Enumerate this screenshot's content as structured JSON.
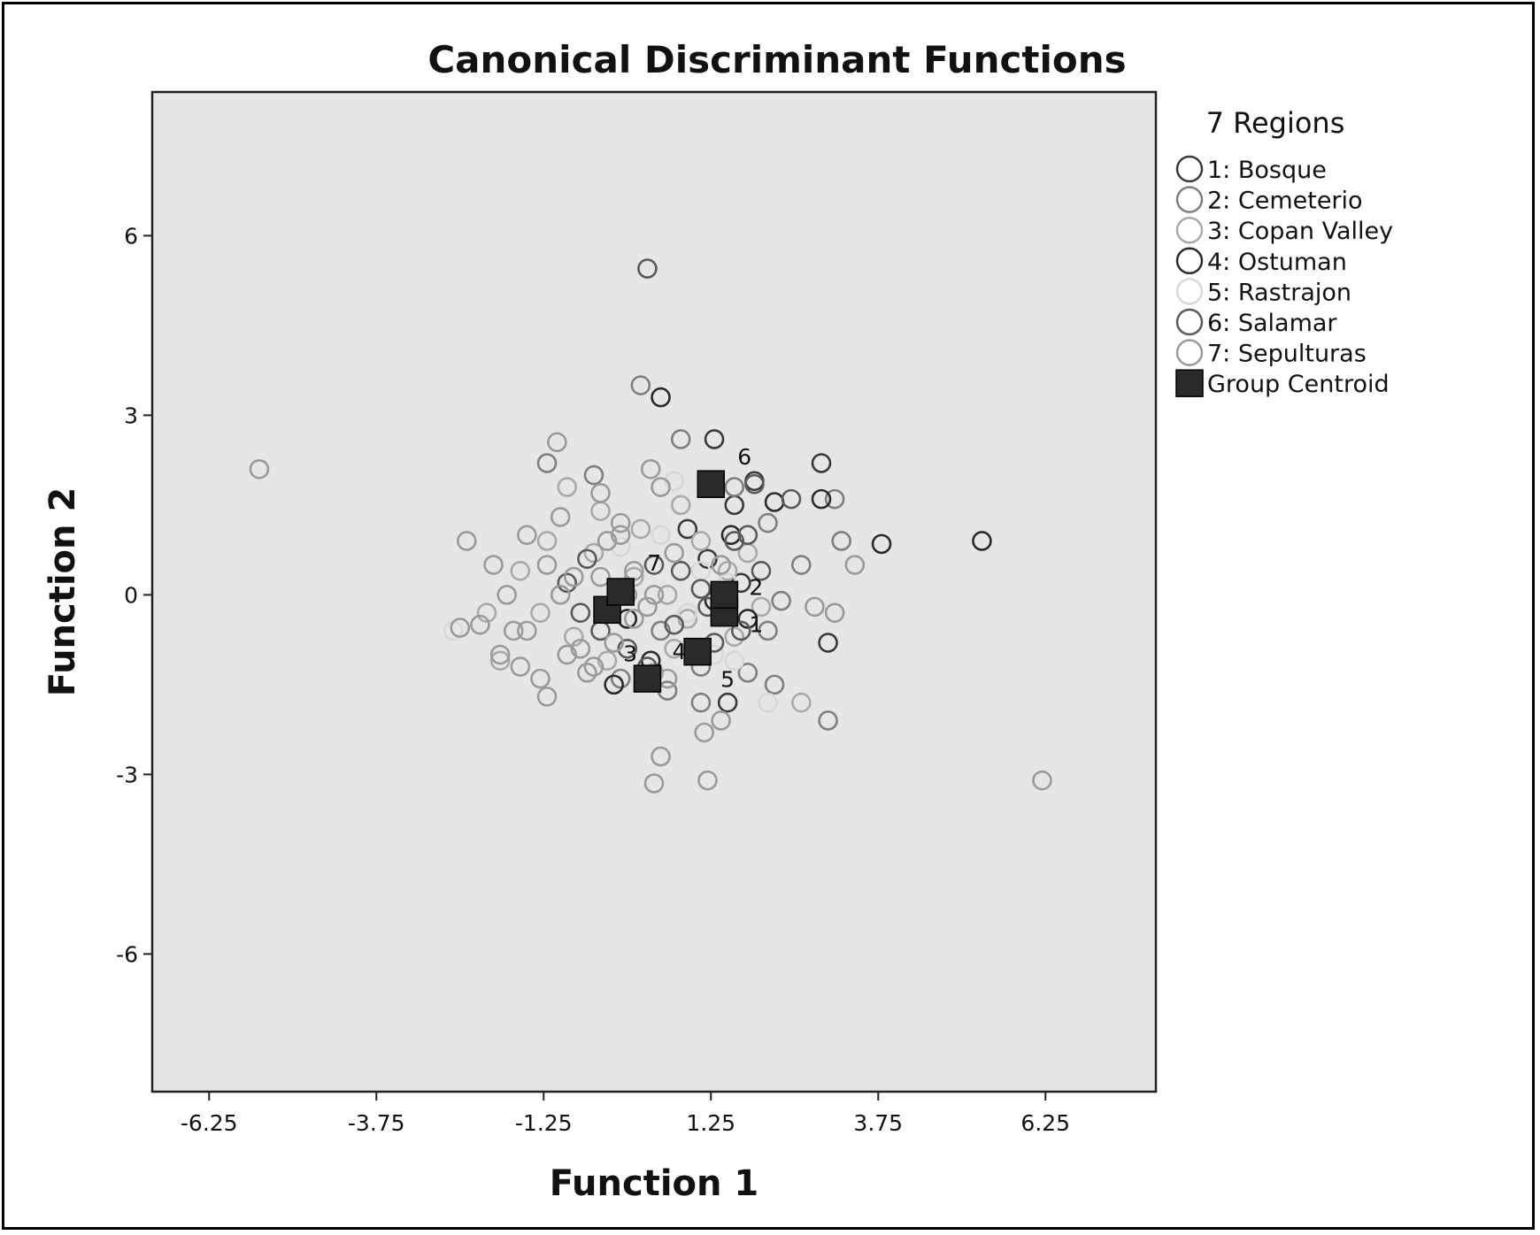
{
  "chart_data": {
    "type": "scatter",
    "title": "Canonical Discriminant Functions",
    "xlabel": "Function 1",
    "ylabel": "Function 2",
    "xlim": [
      -7.1,
      7.9
    ],
    "ylim": [
      -8.3,
      8.4
    ],
    "x_ticks": [
      -6.25,
      -3.75,
      -1.25,
      1.25,
      3.75,
      6.25
    ],
    "y_ticks": [
      6,
      3,
      0,
      -3,
      -6
    ],
    "x_tick_labels": [
      "-6.25",
      "-3.75",
      "-1.25",
      "1.25",
      "3.75",
      "6.25"
    ],
    "y_tick_labels": [
      "6",
      "3",
      "0",
      "-3",
      "-6"
    ],
    "grid": false,
    "legend": {
      "title": "7 Regions",
      "placement": "right"
    },
    "series": [
      {
        "name": "1: Bosque",
        "color": "#3a3a3a",
        "marker": "open-circle",
        "points": [
          [
            1.3,
            2.6
          ],
          [
            1.9,
            1.9
          ],
          [
            2.9,
            2.2
          ],
          [
            1.5,
            -1.8
          ],
          [
            3.0,
            -0.8
          ],
          [
            1.6,
            1.5
          ],
          [
            1.2,
            0.6
          ],
          [
            0.9,
            1.1
          ],
          [
            1.7,
            0.2
          ]
        ]
      },
      {
        "name": "2: Cemeterio",
        "color": "#7f7f7f",
        "marker": "open-circle",
        "points": [
          [
            0.2,
            3.5
          ],
          [
            -1.2,
            2.2
          ],
          [
            -0.5,
            2.0
          ],
          [
            0.8,
            2.6
          ],
          [
            1.6,
            1.8
          ],
          [
            2.1,
            1.2
          ],
          [
            3.1,
            1.6
          ],
          [
            3.2,
            0.9
          ],
          [
            2.6,
            0.5
          ],
          [
            2.3,
            -0.1
          ],
          [
            2.1,
            -0.6
          ],
          [
            1.4,
            -0.3
          ],
          [
            1.1,
            -1.2
          ],
          [
            0.6,
            -1.6
          ],
          [
            -0.1,
            -1.4
          ],
          [
            0.5,
            -0.6
          ],
          [
            1.8,
            -1.3
          ],
          [
            2.2,
            -1.5
          ],
          [
            3.0,
            -2.1
          ],
          [
            1.1,
            -1.8
          ]
        ]
      },
      {
        "name": "3: Copan Valley",
        "color": "#a9a9a9",
        "marker": "open-circle",
        "points": [
          [
            -0.9,
            1.8
          ],
          [
            -0.4,
            1.4
          ],
          [
            0.2,
            1.1
          ],
          [
            0.8,
            1.5
          ],
          [
            1.1,
            0.9
          ],
          [
            1.5,
            0.4
          ],
          [
            1.8,
            0.7
          ],
          [
            2.0,
            -0.2
          ],
          [
            1.6,
            -0.7
          ],
          [
            1.0,
            -1.0
          ],
          [
            0.4,
            -1.3
          ],
          [
            -0.3,
            -1.1
          ],
          [
            -0.8,
            -0.7
          ],
          [
            -1.3,
            -0.3
          ],
          [
            -1.6,
            0.4
          ],
          [
            -1.2,
            0.9
          ],
          [
            -0.5,
            0.7
          ],
          [
            0.1,
            0.3
          ],
          [
            0.6,
            0.0
          ],
          [
            0.9,
            -0.4
          ],
          [
            2.6,
            -1.8
          ],
          [
            -2.1,
            -0.3
          ],
          [
            -1.9,
            -1.1
          ],
          [
            0.7,
            -0.9
          ]
        ]
      },
      {
        "name": "4: Ostuman",
        "color": "#2a2a2a",
        "marker": "open-circle",
        "points": [
          [
            0.5,
            3.3
          ],
          [
            2.9,
            1.6
          ],
          [
            2.2,
            1.55
          ],
          [
            3.8,
            0.85
          ],
          [
            5.3,
            0.9
          ],
          [
            1.55,
            1.0
          ],
          [
            0.35,
            -1.1
          ],
          [
            1.0,
            -0.9
          ],
          [
            0.0,
            -0.4
          ],
          [
            1.3,
            -0.1
          ],
          [
            1.8,
            -0.4
          ],
          [
            -0.2,
            -1.5
          ]
        ]
      },
      {
        "name": "5: Rastrajon",
        "color": "#d8d8d8",
        "marker": "open-circle",
        "points": [
          [
            -2.6,
            -0.6
          ],
          [
            0.7,
            1.9
          ],
          [
            1.1,
            0.4
          ],
          [
            1.5,
            0.2
          ],
          [
            0.9,
            -0.3
          ],
          [
            1.3,
            -1.0
          ],
          [
            1.6,
            -1.1
          ],
          [
            2.1,
            -1.8
          ],
          [
            0.5,
            1.0
          ],
          [
            -0.1,
            0.8
          ]
        ]
      },
      {
        "name": "6: Salamar",
        "color": "#5a5a5a",
        "marker": "open-circle",
        "points": [
          [
            0.3,
            5.45
          ],
          [
            1.9,
            1.85
          ],
          [
            2.45,
            1.6
          ],
          [
            1.3,
            1.9
          ],
          [
            1.8,
            1.0
          ],
          [
            2.0,
            0.4
          ],
          [
            1.7,
            -0.6
          ],
          [
            1.3,
            -0.8
          ],
          [
            0.7,
            -0.5
          ],
          [
            1.1,
            0.1
          ],
          [
            1.6,
            0.9
          ],
          [
            0.3,
            -1.2
          ],
          [
            0.0,
            -0.9
          ],
          [
            -0.4,
            -0.6
          ],
          [
            -0.7,
            -0.3
          ],
          [
            -0.9,
            0.2
          ],
          [
            -0.6,
            0.6
          ],
          [
            0.4,
            0.5
          ],
          [
            1.2,
            -0.2
          ],
          [
            0.8,
            0.4
          ]
        ]
      },
      {
        "name": "7: Sepulturas",
        "color": "#9a9a9a",
        "marker": "open-circle",
        "points": [
          [
            -5.5,
            2.1
          ],
          [
            -1.05,
            2.55
          ],
          [
            0.35,
            2.1
          ],
          [
            0.5,
            1.8
          ],
          [
            -0.4,
            1.7
          ],
          [
            -0.1,
            1.2
          ],
          [
            -1.0,
            1.3
          ],
          [
            -1.5,
            1.0
          ],
          [
            -2.4,
            0.9
          ],
          [
            -2.0,
            0.5
          ],
          [
            -1.8,
            0.0
          ],
          [
            -2.2,
            -0.5
          ],
          [
            -2.5,
            -0.55
          ],
          [
            -1.7,
            -0.6
          ],
          [
            -1.9,
            -1.0
          ],
          [
            -1.6,
            -1.2
          ],
          [
            -1.3,
            -1.4
          ],
          [
            -0.9,
            -1.0
          ],
          [
            -0.5,
            -1.2
          ],
          [
            -0.2,
            -0.8
          ],
          [
            0.1,
            -0.4
          ],
          [
            0.4,
            0.0
          ],
          [
            0.1,
            0.4
          ],
          [
            -0.3,
            0.9
          ],
          [
            -0.8,
            0.3
          ],
          [
            -1.2,
            0.5
          ],
          [
            -1.5,
            -0.6
          ],
          [
            -0.6,
            -1.3
          ],
          [
            0.6,
            -1.4
          ],
          [
            0.5,
            -2.7
          ],
          [
            0.4,
            -3.15
          ],
          [
            1.2,
            -3.1
          ],
          [
            1.15,
            -2.3
          ],
          [
            1.4,
            -2.1
          ],
          [
            3.4,
            0.5
          ],
          [
            3.1,
            -0.3
          ],
          [
            2.8,
            -0.2
          ],
          [
            6.2,
            -3.1
          ],
          [
            -1.2,
            -1.7
          ],
          [
            -0.1,
            1.0
          ],
          [
            0.7,
            0.7
          ],
          [
            1.4,
            0.5
          ],
          [
            -0.7,
            -0.9
          ],
          [
            0.0,
            0.0
          ],
          [
            0.3,
            -0.2
          ],
          [
            -1.0,
            0.0
          ],
          [
            -0.4,
            0.3
          ]
        ]
      }
    ],
    "centroids": {
      "name": "Group Centroid",
      "points": [
        {
          "label": "1",
          "x": 1.45,
          "y": -0.3
        },
        {
          "label": "2",
          "x": 1.45,
          "y": 0.0
        },
        {
          "label": "3",
          "x": -0.3,
          "y": -0.25
        },
        {
          "label": "4",
          "x": 0.3,
          "y": -1.4
        },
        {
          "label": "5",
          "x": 1.05,
          "y": -0.95
        },
        {
          "label": "6",
          "x": 1.25,
          "y": 1.85
        },
        {
          "label": "7",
          "x": -0.1,
          "y": 0.05
        }
      ]
    }
  }
}
